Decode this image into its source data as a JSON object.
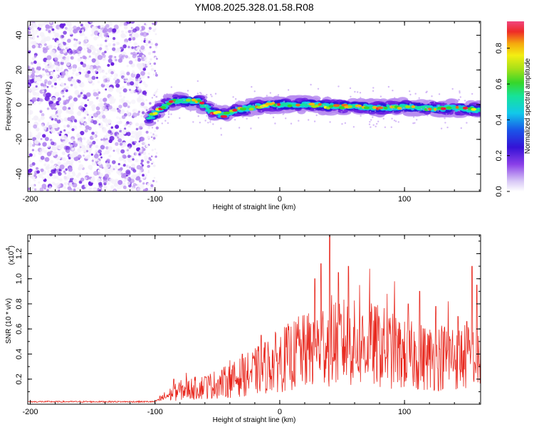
{
  "title": "YM08.2025.328.01.58.R08",
  "colors": {
    "line": "#e8281e",
    "axis": "#000000",
    "colormap": [
      "#f4f0fa",
      "#b78cf0",
      "#6a1fe0",
      "#2a1ad8",
      "#1a7ae8",
      "#12d6e6",
      "#16e39a",
      "#37d62a",
      "#9fe018",
      "#f2ef12",
      "#f5b70e",
      "#f06a1a",
      "#ee1c38",
      "#f0467e"
    ]
  },
  "chart_data": [
    {
      "type": "heatmap",
      "title": "YM08.2025.328.01.58.R08",
      "xlabel": "Height of straight line (km)",
      "ylabel": "Frequency (Hz)",
      "xlim": [
        -202,
        161
      ],
      "ylim": [
        -50,
        48
      ],
      "xticks": [
        -200,
        -100,
        0,
        100
      ],
      "yticks": [
        40,
        20,
        0,
        -20,
        -40
      ],
      "colorbar": {
        "label": "Normalized spectral amplitude",
        "range": [
          0,
          0.95
        ],
        "ticks": [
          "0.0",
          "0.2",
          "0.4",
          "0.6",
          "0.8"
        ],
        "tick_values": [
          0,
          0.2,
          0.4,
          0.6,
          0.8
        ]
      },
      "noise_region_x": [
        -202,
        -107
      ],
      "sparse_region_x": [
        -107,
        -98
      ],
      "signal_ridge": {
        "x_start": -105,
        "x_end": 161,
        "frequency_points": [
          [
            -105,
            -8
          ],
          [
            -95,
            -2
          ],
          [
            -85,
            2
          ],
          [
            -75,
            2
          ],
          [
            -65,
            2
          ],
          [
            -55,
            -4
          ],
          [
            -45,
            -6
          ],
          [
            -35,
            -3
          ],
          [
            -25,
            -2
          ],
          [
            -10,
            0
          ],
          [
            0,
            0
          ],
          [
            10,
            0
          ],
          [
            25,
            0
          ],
          [
            40,
            -1
          ],
          [
            60,
            -1
          ],
          [
            80,
            -2
          ],
          [
            100,
            -1
          ],
          [
            120,
            -2
          ],
          [
            140,
            -2
          ],
          [
            161,
            -3
          ]
        ],
        "band_width_hz": 8,
        "peak_amplitude": 0.95
      }
    },
    {
      "type": "line",
      "xlabel": "Height of straight line (km)",
      "ylabel": "SNR (10 * v/v)",
      "scale_label": "(x10",
      "scale_exp": "4",
      "scale_close": ")",
      "xlim": [
        -202,
        161
      ],
      "ylim": [
        0,
        1.35
      ],
      "xticks": [
        -200,
        -100,
        0,
        100
      ],
      "yticks": [
        0.2,
        0.4,
        0.6,
        0.8,
        1.0,
        1.2
      ],
      "ytick_labels": [
        "0.2",
        "0.4",
        "0.6",
        "0.8",
        "1.0",
        "1.2"
      ],
      "series": [
        {
          "name": "SNR",
          "description": "baseline ~0.02 from -202 to -95 km, rising noisy envelope to peaks ~1.35 near 40 km",
          "envelope": [
            [
              -202,
              0.02
            ],
            [
              -100,
              0.02
            ],
            [
              -95,
              0.05
            ],
            [
              -80,
              0.12
            ],
            [
              -60,
              0.15
            ],
            [
              -40,
              0.2
            ],
            [
              -20,
              0.28
            ],
            [
              0,
              0.38
            ],
            [
              20,
              0.45
            ],
            [
              40,
              0.55
            ],
            [
              60,
              0.52
            ],
            [
              80,
              0.5
            ],
            [
              100,
              0.42
            ],
            [
              120,
              0.4
            ],
            [
              140,
              0.42
            ],
            [
              161,
              0.38
            ]
          ],
          "peaks": [
            [
              -85,
              0.2
            ],
            [
              -75,
              0.25
            ],
            [
              -60,
              0.22
            ],
            [
              -40,
              0.35
            ],
            [
              -30,
              0.4
            ],
            [
              -15,
              0.55
            ],
            [
              15,
              0.7
            ],
            [
              28,
              1.0
            ],
            [
              33,
              1.12
            ],
            [
              40,
              1.35
            ],
            [
              47,
              1.05
            ],
            [
              55,
              1.1
            ],
            [
              64,
              0.95
            ],
            [
              72,
              1.08
            ],
            [
              86,
              0.88
            ],
            [
              92,
              0.98
            ],
            [
              103,
              0.8
            ],
            [
              112,
              0.9
            ],
            [
              125,
              0.78
            ],
            [
              135,
              0.82
            ],
            [
              143,
              0.7
            ],
            [
              150,
              0.66
            ],
            [
              154,
              1.1
            ],
            [
              158,
              0.95
            ]
          ]
        }
      ]
    }
  ]
}
